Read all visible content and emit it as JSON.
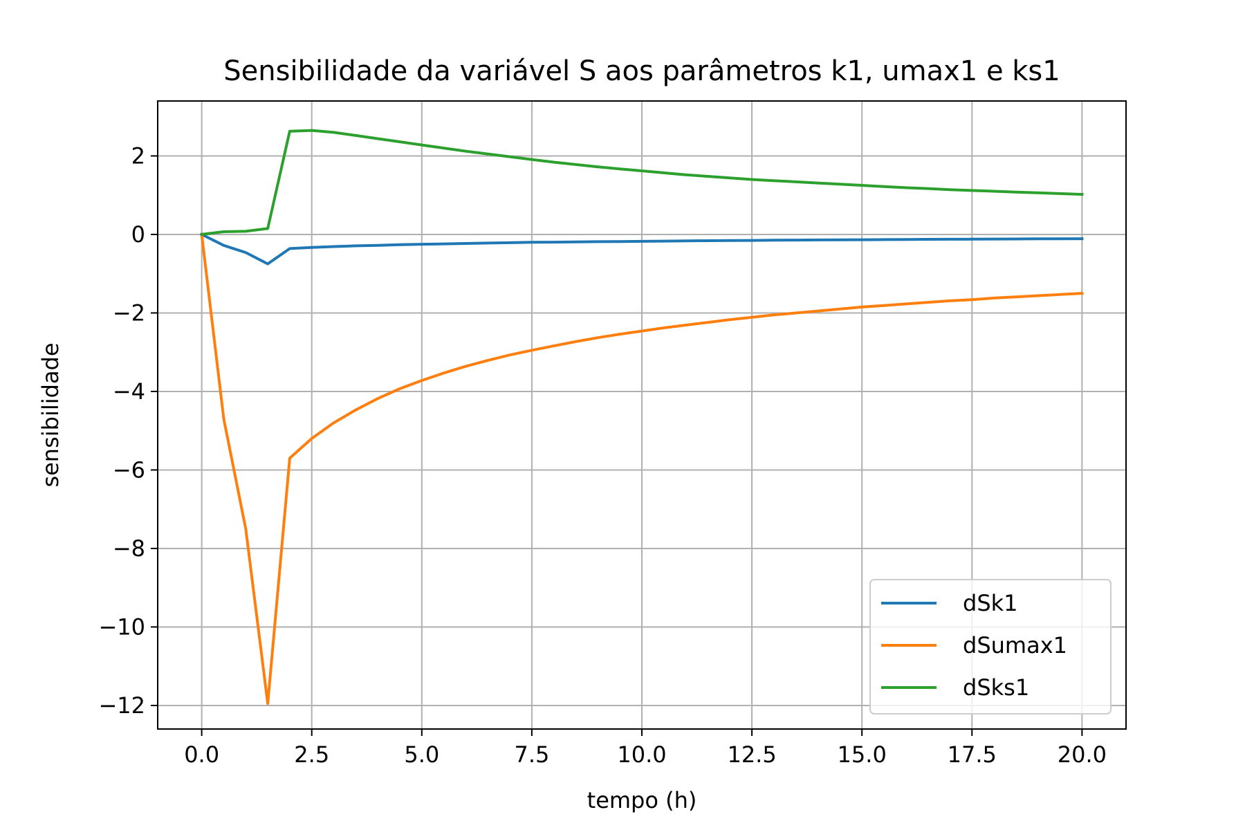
{
  "chart_data": {
    "type": "line",
    "title": "Sensibilidade da variável S aos parâmetros k1, umax1 e ks1",
    "xlabel": "tempo (h)",
    "ylabel": "sensibilidade",
    "xlim": [
      -1.0,
      21.0
    ],
    "ylim": [
      -12.6,
      3.4
    ],
    "xticks": [
      0.0,
      2.5,
      5.0,
      7.5,
      10.0,
      12.5,
      15.0,
      17.5,
      20.0
    ],
    "xtick_labels": [
      "0.0",
      "2.5",
      "5.0",
      "7.5",
      "10.0",
      "12.5",
      "15.0",
      "17.5",
      "20.0"
    ],
    "yticks": [
      2,
      0,
      -2,
      -4,
      -6,
      -8,
      -10,
      -12
    ],
    "ytick_labels": [
      "2",
      "0",
      "−2",
      "−4",
      "−6",
      "−8",
      "−10",
      "−12"
    ],
    "grid": true,
    "legend_position": "lower-right",
    "x": [
      0,
      0.5,
      1,
      1.5,
      2,
      2.5,
      3,
      3.5,
      4,
      4.5,
      5,
      5.5,
      6,
      6.5,
      7,
      7.5,
      8,
      8.5,
      9,
      9.5,
      10,
      10.5,
      11,
      11.5,
      12,
      12.5,
      13,
      13.5,
      14,
      14.5,
      15,
      15.5,
      16,
      16.5,
      17,
      17.5,
      18,
      18.5,
      19,
      19.5,
      20
    ],
    "series": [
      {
        "name": "dSk1",
        "color": "#1f77b4",
        "values": [
          0,
          -0.28,
          -0.46,
          -0.75,
          -0.36,
          -0.33,
          -0.31,
          -0.29,
          -0.28,
          -0.26,
          -0.25,
          -0.24,
          -0.23,
          -0.22,
          -0.21,
          -0.2,
          -0.196,
          -0.19,
          -0.185,
          -0.18,
          -0.175,
          -0.17,
          -0.165,
          -0.16,
          -0.156,
          -0.152,
          -0.148,
          -0.144,
          -0.14,
          -0.137,
          -0.134,
          -0.131,
          -0.128,
          -0.125,
          -0.122,
          -0.12,
          -0.118,
          -0.115,
          -0.112,
          -0.11,
          -0.108
        ]
      },
      {
        "name": "dSumax1",
        "color": "#ff7f0e",
        "values": [
          0,
          -4.7,
          -7.5,
          -11.95,
          -5.7,
          -5.2,
          -4.8,
          -4.47,
          -4.18,
          -3.93,
          -3.72,
          -3.53,
          -3.36,
          -3.21,
          -3.07,
          -2.95,
          -2.84,
          -2.73,
          -2.63,
          -2.54,
          -2.46,
          -2.38,
          -2.31,
          -2.24,
          -2.17,
          -2.11,
          -2.05,
          -2.0,
          -1.95,
          -1.9,
          -1.85,
          -1.81,
          -1.77,
          -1.73,
          -1.69,
          -1.66,
          -1.62,
          -1.59,
          -1.56,
          -1.53,
          -1.5
        ]
      },
      {
        "name": "dSks1",
        "color": "#2ca02c",
        "values": [
          0,
          0.07,
          0.08,
          0.15,
          2.63,
          2.65,
          2.6,
          2.52,
          2.44,
          2.36,
          2.28,
          2.2,
          2.12,
          2.05,
          1.98,
          1.91,
          1.84,
          1.78,
          1.72,
          1.67,
          1.62,
          1.57,
          1.52,
          1.48,
          1.44,
          1.4,
          1.37,
          1.34,
          1.31,
          1.28,
          1.25,
          1.22,
          1.19,
          1.17,
          1.14,
          1.12,
          1.1,
          1.08,
          1.06,
          1.04,
          1.02
        ]
      }
    ]
  }
}
